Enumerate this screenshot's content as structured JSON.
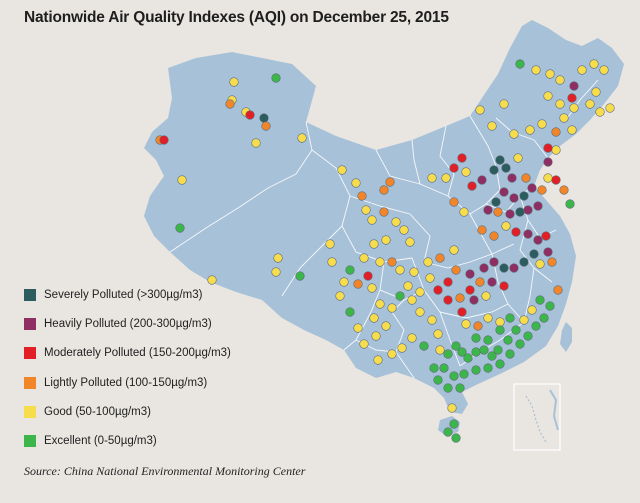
{
  "title": "Nationwide Air Quality Indexes (AQI) on December 25, 2015",
  "source": "Source: China National Environmental Monitoring Center",
  "colors": {
    "background": "#e9e6e1",
    "land": "#a7c1d8",
    "border": "#ffffff",
    "severe": "#2b5d5e",
    "heavy": "#8e2e62",
    "moderate": "#e21f26",
    "light": "#f1852a",
    "good": "#f7dc4c",
    "excellent": "#3cb54a"
  },
  "legend": [
    {
      "key": "severe",
      "label": "Severely Polluted (>300µg/m3)"
    },
    {
      "key": "heavy",
      "label": "Heavily Polluted (200-300µg/m3)"
    },
    {
      "key": "moderate",
      "label": "Moderately Polluted (150-200µg/m3)"
    },
    {
      "key": "light",
      "label": "Lightly Polluted (100-150µg/m3)"
    },
    {
      "key": "good",
      "label": "Good (50-100µg/m3)"
    },
    {
      "key": "excellent",
      "label": "Excellent (0-50µg/m3)"
    }
  ]
}
